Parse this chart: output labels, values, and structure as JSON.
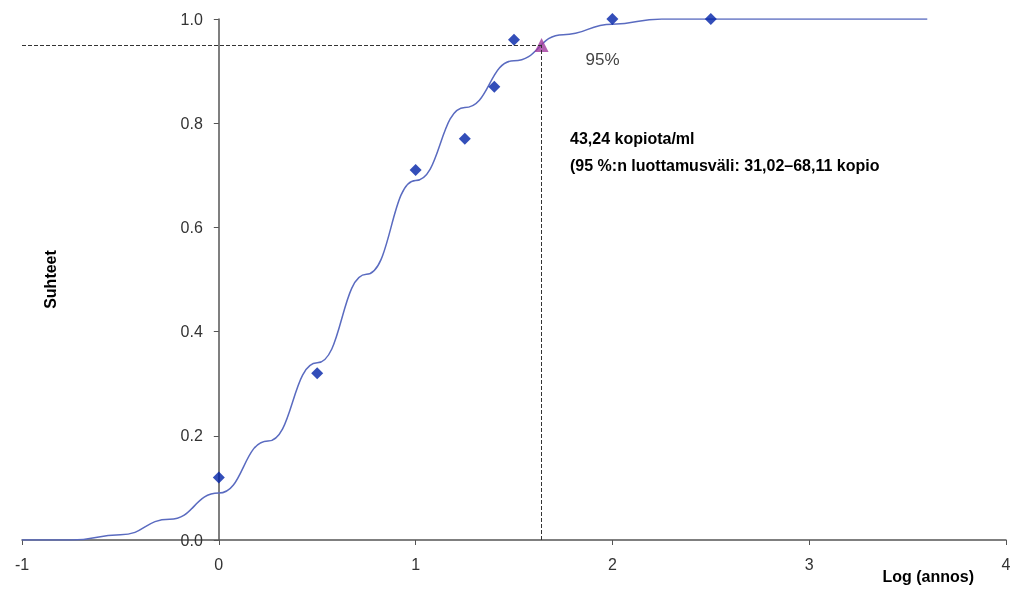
{
  "chart_data": {
    "type": "scatter",
    "xlabel": "Log (annos)",
    "ylabel": "Suhteet",
    "xlim": [
      -1,
      4
    ],
    "xticks": [
      -1,
      0,
      1,
      2,
      3,
      4
    ],
    "ylim": [
      0,
      1
    ],
    "yticks": [
      {
        "value": 0,
        "label": "0.0"
      },
      {
        "value": 0.2,
        "label": "0.2"
      },
      {
        "value": 0.4,
        "label": "0.4"
      },
      {
        "value": 0.6,
        "label": "0.6"
      },
      {
        "value": 0.8,
        "label": "0.8"
      },
      {
        "value": 1,
        "label": "1.0"
      }
    ],
    "grid": false,
    "series": [
      {
        "type": "line",
        "marker": "none",
        "color": "#5a6bc0",
        "x": [
          -1,
          -0.75,
          -0.5,
          -0.25,
          0,
          0.25,
          0.5,
          0.75,
          1,
          1.25,
          1.5,
          1.75,
          2,
          2.25,
          2.5,
          3,
          3.6
        ],
        "values": [
          0,
          0,
          0.01,
          0.04,
          0.09,
          0.19,
          0.34,
          0.51,
          0.69,
          0.83,
          0.92,
          0.97,
          0.99,
          1,
          1,
          1,
          1
        ]
      },
      {
        "marker": "diamond",
        "color": "#0022a8",
        "x": [
          0,
          0.5,
          1,
          1.25,
          1.4,
          1.5,
          2,
          2.5
        ],
        "values": [
          0.12,
          0.32,
          0.71,
          0.77,
          0.87,
          0.96,
          1,
          1
        ]
      },
      {
        "marker": "triangle",
        "color": "#a0389c",
        "x": [
          1.64
        ],
        "values": [
          0.95
        ]
      }
    ],
    "ref_lines": [
      {
        "axis": "y",
        "value": 0.95,
        "line_style": "dashed",
        "color": "#333333"
      },
      {
        "axis": "x",
        "value": 1.64,
        "line_style": "dashed",
        "color": "#333333"
      }
    ],
    "annotations": [
      {
        "text": "95%",
        "x": 1.64,
        "y": 0.95
      },
      "43,24 kopiota/ml",
      "(95 %:n luottamusväli: 31,02–68,11 kopio"
    ]
  }
}
